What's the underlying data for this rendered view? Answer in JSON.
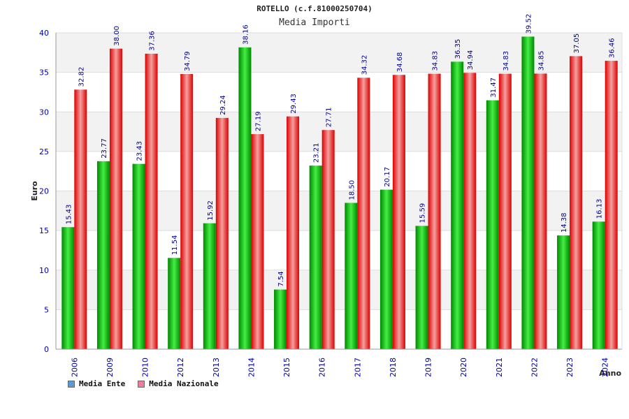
{
  "chart_data": {
    "type": "bar",
    "title": "ROTELLO (c.f.81000250704)",
    "subtitle": "Media Importi",
    "xlabel": "Anno",
    "ylabel": "Euro",
    "ylim": [
      0,
      40
    ],
    "yticks": [
      "0",
      "5",
      "10",
      "15",
      "20",
      "25",
      "30",
      "35",
      "40"
    ],
    "grid": true,
    "legend_position": "bottom-left",
    "categories": [
      "2006",
      "2009",
      "2010",
      "2012",
      "2013",
      "2014",
      "2015",
      "2016",
      "2017",
      "2018",
      "2019",
      "2020",
      "2021",
      "2022",
      "2023",
      "2024"
    ],
    "series": [
      {
        "name": "Media Ente",
        "color": "#00aa00",
        "legend_color": "#5b9bd5",
        "values": [
          15.43,
          23.77,
          23.43,
          11.54,
          15.92,
          38.16,
          7.54,
          23.21,
          18.5,
          20.17,
          15.59,
          36.35,
          31.47,
          39.52,
          14.38,
          16.13
        ],
        "labels": [
          "15.43",
          "23.77",
          "23.43",
          "11.54",
          "15.92",
          "38.16",
          "7.54",
          "23.21",
          "18.50",
          "20.17",
          "15.59",
          "36.35",
          "31.47",
          "39.52",
          "14.38",
          "16.13"
        ]
      },
      {
        "name": "Media Nazionale",
        "color": "#ee1111",
        "legend_color": "#e8829c",
        "values": [
          32.82,
          38.0,
          37.36,
          34.79,
          29.24,
          27.19,
          29.43,
          27.71,
          34.32,
          34.68,
          34.83,
          34.94,
          34.83,
          34.85,
          37.05,
          36.46
        ],
        "labels": [
          "32.82",
          "38.00",
          "37.36",
          "34.79",
          "29.24",
          "27.19",
          "29.43",
          "27.71",
          "34.32",
          "34.68",
          "34.83",
          "34.94",
          "34.83",
          "34.85",
          "37.05",
          "36.46"
        ]
      }
    ]
  }
}
